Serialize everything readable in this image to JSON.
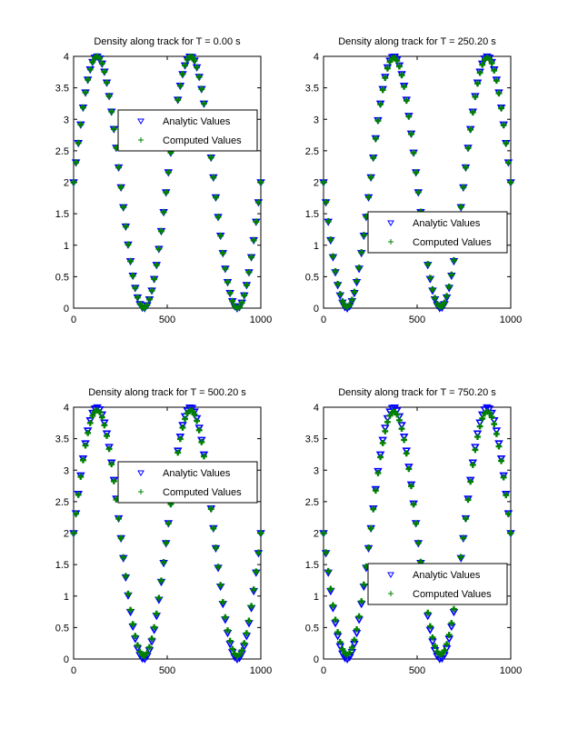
{
  "chart_data": [
    {
      "type": "scatter",
      "title": "Density along track for T = 0.00 s",
      "xlim": [
        0,
        1000
      ],
      "ylim": [
        0,
        4
      ],
      "xticks": [
        "0",
        "500",
        "1000"
      ],
      "yticks": [
        "0",
        "0.5",
        "1",
        "1.5",
        "2",
        "2.5",
        "3",
        "3.5",
        "4"
      ],
      "legend_placement": "center-right",
      "grid": false,
      "series": [
        {
          "name": "Analytic Values",
          "marker": "triangle-down",
          "color": "#0000ff",
          "x_range": [
            0,
            1000
          ],
          "mean": 2,
          "amplitude": 2,
          "period": 500,
          "phase_shift": 0
        },
        {
          "name": "Computed Values",
          "marker": "plus",
          "color": "#008000",
          "x_range": [
            0,
            1000
          ],
          "mean": 2,
          "amplitude": 2,
          "period": 500,
          "phase_shift": 0
        }
      ]
    },
    {
      "type": "scatter",
      "title": "Density along track for T = 250.20 s",
      "xlim": [
        0,
        1000
      ],
      "ylim": [
        0,
        4
      ],
      "xticks": [
        "0",
        "500",
        "1000"
      ],
      "yticks": [
        "0",
        "0.5",
        "1",
        "1.5",
        "2",
        "2.5",
        "3",
        "3.5",
        "4"
      ],
      "legend_placement": "lower-right",
      "grid": false,
      "series": [
        {
          "name": "Analytic Values",
          "marker": "triangle-down",
          "color": "#0000ff",
          "x_range": [
            0,
            1000
          ],
          "mean": 2,
          "amplitude": 2,
          "period": 500,
          "phase_shift": 250
        },
        {
          "name": "Computed Values",
          "marker": "plus",
          "color": "#008000",
          "x_range": [
            0,
            1000
          ],
          "mean": 2,
          "amplitude": 1.98,
          "period": 500,
          "phase_shift": 250
        }
      ]
    },
    {
      "type": "scatter",
      "title": "Density along track for T = 500.20 s",
      "xlim": [
        0,
        1000
      ],
      "ylim": [
        0,
        4
      ],
      "xticks": [
        "0",
        "500",
        "1000"
      ],
      "yticks": [
        "0",
        "0.5",
        "1",
        "1.5",
        "2",
        "2.5",
        "3",
        "3.5",
        "4"
      ],
      "legend_placement": "center-right",
      "grid": false,
      "series": [
        {
          "name": "Analytic Values",
          "marker": "triangle-down",
          "color": "#0000ff",
          "x_range": [
            0,
            1000
          ],
          "mean": 2,
          "amplitude": 2,
          "period": 500,
          "phase_shift": 0
        },
        {
          "name": "Computed Values",
          "marker": "plus",
          "color": "#008000",
          "x_range": [
            0,
            1000
          ],
          "mean": 2,
          "amplitude": 1.95,
          "period": 500,
          "phase_shift": 0
        }
      ]
    },
    {
      "type": "scatter",
      "title": "Density along track for T = 750.20 s",
      "xlim": [
        0,
        1000
      ],
      "ylim": [
        0,
        4
      ],
      "xticks": [
        "0",
        "500",
        "1000"
      ],
      "yticks": [
        "0",
        "0.5",
        "1",
        "1.5",
        "2",
        "2.5",
        "3",
        "3.5",
        "4"
      ],
      "legend_placement": "lower-right",
      "grid": false,
      "series": [
        {
          "name": "Analytic Values",
          "marker": "triangle-down",
          "color": "#0000ff",
          "x_range": [
            0,
            1000
          ],
          "mean": 2,
          "amplitude": 2,
          "period": 500,
          "phase_shift": 250
        },
        {
          "name": "Computed Values",
          "marker": "plus",
          "color": "#008000",
          "x_range": [
            0,
            1000
          ],
          "mean": 2,
          "amplitude": 1.93,
          "period": 500,
          "phase_shift": 250
        }
      ]
    }
  ]
}
